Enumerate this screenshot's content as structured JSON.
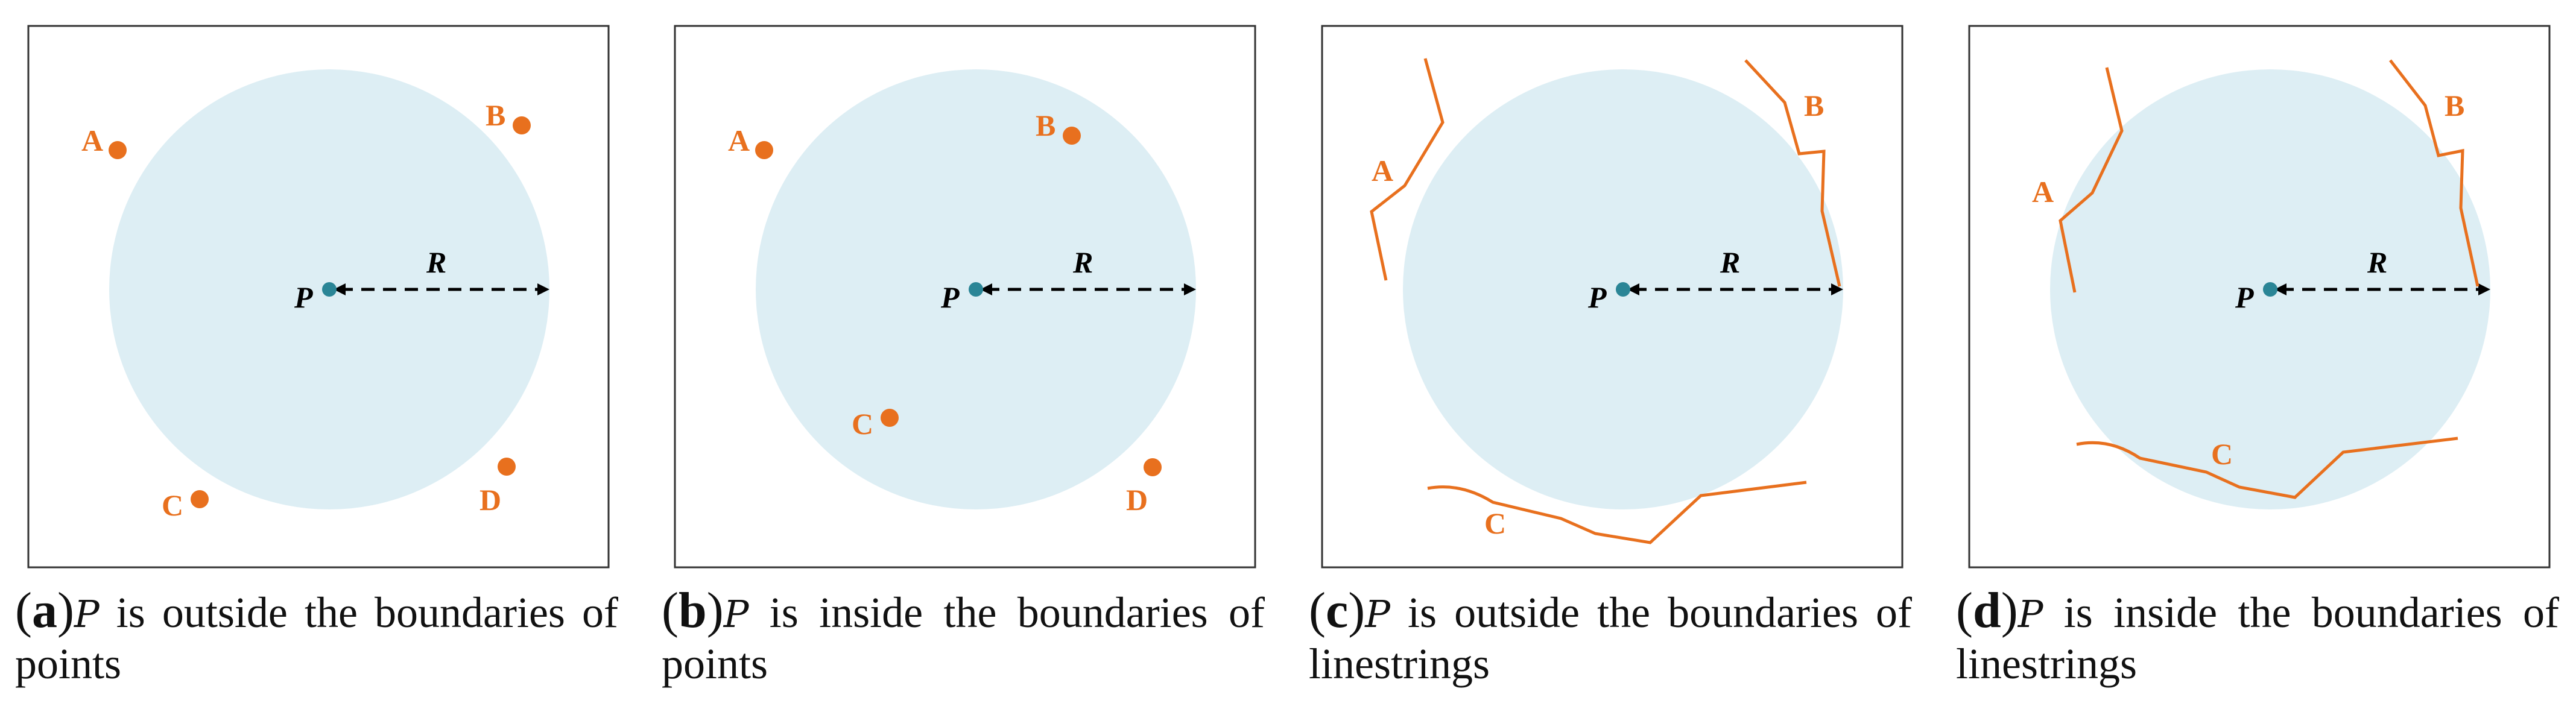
{
  "colors": {
    "circle_fill": "#ddeef4",
    "feature": "#e8701e",
    "center_point": "#2a8596",
    "frame": "#333333",
    "arrow": "#000000",
    "text": "#111111"
  },
  "center_label": "P",
  "radius_label": "R",
  "panels": [
    {
      "tag": "a",
      "caption_var": "P",
      "caption_text": " is outside the boundaries of points",
      "feature_type": "points",
      "p_inside": false,
      "feature_labels": [
        "A",
        "B",
        "C",
        "D"
      ]
    },
    {
      "tag": "b",
      "caption_var": "P",
      "caption_text": " is inside the boundaries of points",
      "feature_type": "points",
      "p_inside": true,
      "feature_labels": [
        "A",
        "B",
        "C",
        "D"
      ]
    },
    {
      "tag": "c",
      "caption_var": "P",
      "caption_text": " is outside the boundaries of linestrings",
      "feature_type": "linestrings",
      "p_inside": false,
      "feature_labels": [
        "A",
        "B",
        "C"
      ]
    },
    {
      "tag": "d",
      "caption_var": "P",
      "caption_text": " is inside the boundaries of linestrings",
      "feature_type": "linestrings",
      "p_inside": true,
      "feature_labels": [
        "A",
        "B",
        "C"
      ]
    }
  ]
}
